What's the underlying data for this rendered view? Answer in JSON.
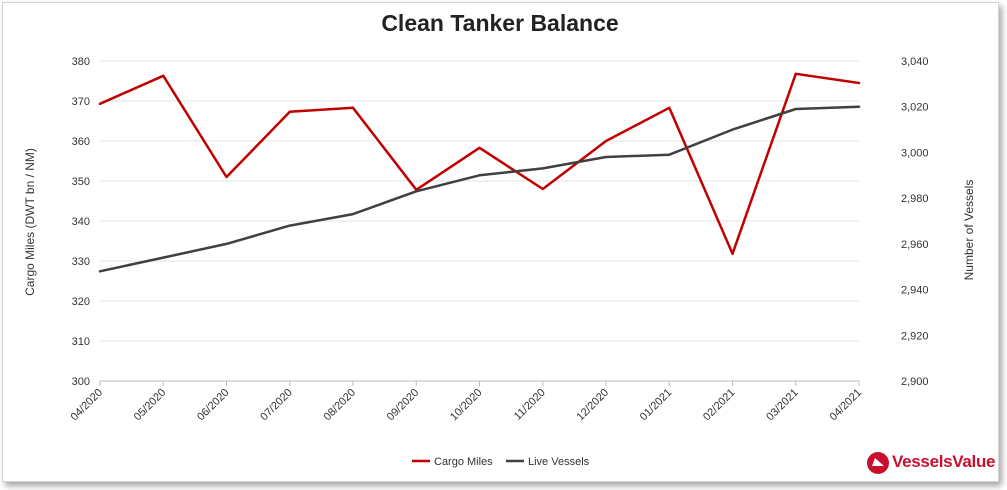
{
  "chart_data": {
    "type": "line",
    "title": "Clean Tanker Balance",
    "categories": [
      "04/2020",
      "05/2020",
      "06/2020",
      "07/2020",
      "08/2020",
      "09/2020",
      "10/2020",
      "11/2020",
      "12/2020",
      "01/2021",
      "02/2021",
      "03/2021",
      "04/2021"
    ],
    "ylabel_left": "Cargo Miles (DWT bn / NM)",
    "ylabel_right": "Number of Vessels",
    "ylim_left": [
      300,
      380
    ],
    "ylim_right": [
      2900,
      3040
    ],
    "yticks_left": [
      "300",
      "310",
      "320",
      "330",
      "340",
      "350",
      "360",
      "370",
      "380"
    ],
    "yticks_right": [
      "2,900",
      "2,920",
      "2,940",
      "2,960",
      "2,980",
      "3,000",
      "3,020",
      "3,040"
    ],
    "series": [
      {
        "name": "Cargo Miles",
        "axis": "left",
        "color": "#c00000",
        "values": [
          369.3,
          376.3,
          351.0,
          367.3,
          368.3,
          347.8,
          358.3,
          348.0,
          360.0,
          368.3,
          331.8,
          376.8,
          374.5
        ]
      },
      {
        "name": "Live Vessels",
        "axis": "right",
        "color": "#404040",
        "values": [
          2948,
          2954,
          2960,
          2968,
          2973,
          2983,
          2990,
          2993,
          2998,
          2999,
          3010,
          3019,
          3020
        ]
      }
    ],
    "grid": true,
    "legend": "bottom-center"
  },
  "branding": {
    "logo_text": "VesselsValue"
  }
}
